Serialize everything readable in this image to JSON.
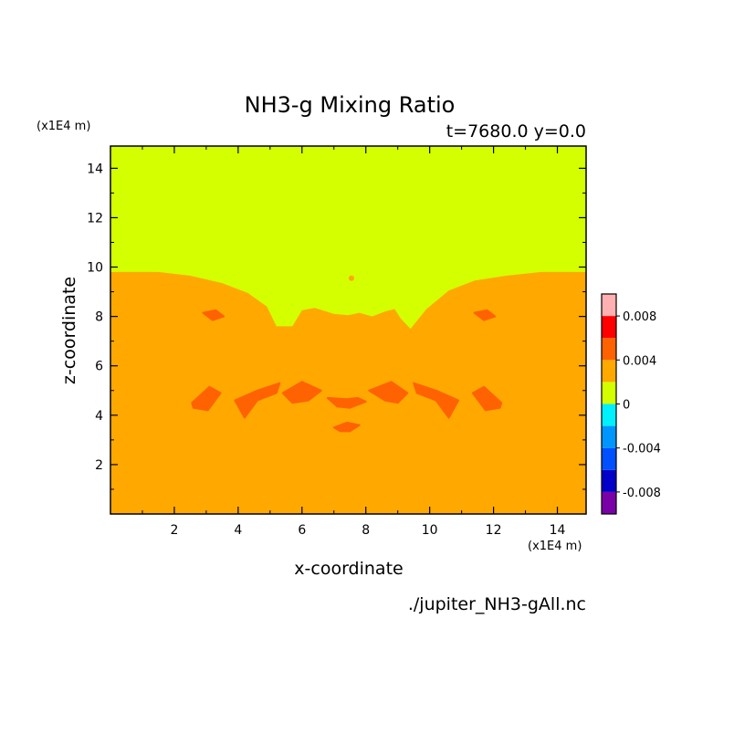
{
  "chart_data": {
    "type": "heatmap",
    "title": "NH3-g Mixing Ratio",
    "subtitle": "t=7680.0 y=0.0",
    "xlabel": "x-coordinate",
    "ylabel": "z-coordinate",
    "x_unit_label": "(x1E4 m)",
    "z_unit_label": "(x1E4 m)",
    "source_file": "./jupiter_NH3-gAll.nc",
    "xlim": [
      0,
      14.9
    ],
    "ylim": [
      0,
      14.9
    ],
    "x_ticks": [
      2,
      4,
      6,
      8,
      10,
      12,
      14
    ],
    "y_ticks": [
      2,
      4,
      6,
      8,
      10,
      12,
      14
    ],
    "grid": false,
    "colorbar": {
      "placement": "right",
      "levels": [
        {
          "from": -0.01,
          "to": -0.008,
          "color": "#7a00a8"
        },
        {
          "from": -0.008,
          "to": -0.006,
          "color": "#0000c8"
        },
        {
          "from": -0.006,
          "to": -0.004,
          "color": "#0050ff"
        },
        {
          "from": -0.004,
          "to": -0.002,
          "color": "#0096ff"
        },
        {
          "from": -0.002,
          "to": 0.0,
          "color": "#00f0ff"
        },
        {
          "from": 0.0,
          "to": 0.002,
          "color": "#d4ff00"
        },
        {
          "from": 0.002,
          "to": 0.004,
          "color": "#ffa800"
        },
        {
          "from": 0.004,
          "to": 0.006,
          "color": "#ff6200"
        },
        {
          "from": 0.006,
          "to": 0.008,
          "color": "#ff0000"
        },
        {
          "from": 0.008,
          "to": 0.01,
          "color": "#ffb0b0"
        }
      ],
      "tick_values": [
        0.008,
        0.004,
        0,
        -0.004,
        -0.008
      ],
      "tick_labels": [
        "0.008",
        "0.004",
        "0",
        "-0.004",
        "-0.008"
      ]
    },
    "regions": {
      "upper": {
        "color": "#d4ff00",
        "range": "0 to 0.002"
      },
      "lower": {
        "color": "#ffa800",
        "range": "0.002 to 0.004"
      },
      "cells": {
        "color": "#ff6200",
        "range": "0.004 to 0.006"
      }
    },
    "boundary": [
      [
        0.0,
        9.8
      ],
      [
        1.5,
        9.8
      ],
      [
        2.5,
        9.65
      ],
      [
        3.5,
        9.35
      ],
      [
        4.3,
        8.95
      ],
      [
        4.9,
        8.4
      ],
      [
        5.2,
        7.6
      ],
      [
        5.7,
        7.6
      ],
      [
        6.0,
        8.25
      ],
      [
        6.4,
        8.35
      ],
      [
        7.0,
        8.1
      ],
      [
        7.45,
        8.05
      ],
      [
        7.8,
        8.15
      ],
      [
        8.2,
        8.0
      ],
      [
        8.6,
        8.2
      ],
      [
        8.9,
        8.3
      ],
      [
        9.1,
        7.9
      ],
      [
        9.4,
        7.5
      ],
      [
        9.9,
        8.3
      ],
      [
        10.6,
        9.05
      ],
      [
        11.4,
        9.45
      ],
      [
        12.4,
        9.65
      ],
      [
        13.5,
        9.8
      ],
      [
        14.9,
        9.8
      ]
    ],
    "cells": [
      [
        [
          2.9,
          8.15
        ],
        [
          3.3,
          8.25
        ],
        [
          3.55,
          8.0
        ],
        [
          3.2,
          7.85
        ]
      ],
      [
        [
          11.4,
          8.15
        ],
        [
          11.8,
          8.25
        ],
        [
          12.05,
          8.0
        ],
        [
          11.7,
          7.85
        ]
      ],
      [
        [
          2.55,
          4.5
        ],
        [
          3.1,
          5.15
        ],
        [
          3.45,
          4.9
        ],
        [
          3.05,
          4.2
        ],
        [
          2.6,
          4.3
        ]
      ],
      [
        [
          12.25,
          4.5
        ],
        [
          11.7,
          5.15
        ],
        [
          11.35,
          4.9
        ],
        [
          11.75,
          4.2
        ],
        [
          12.2,
          4.3
        ]
      ],
      [
        [
          3.9,
          4.6
        ],
        [
          4.6,
          5.0
        ],
        [
          5.3,
          5.3
        ],
        [
          5.2,
          4.9
        ],
        [
          4.6,
          4.6
        ],
        [
          4.2,
          3.9
        ]
      ],
      [
        [
          10.9,
          4.6
        ],
        [
          10.2,
          5.0
        ],
        [
          9.5,
          5.3
        ],
        [
          9.6,
          4.9
        ],
        [
          10.2,
          4.6
        ],
        [
          10.6,
          3.9
        ]
      ],
      [
        [
          5.4,
          4.9
        ],
        [
          6.0,
          5.35
        ],
        [
          6.6,
          5.0
        ],
        [
          6.2,
          4.6
        ],
        [
          5.7,
          4.5
        ]
      ],
      [
        [
          9.3,
          4.9
        ],
        [
          8.8,
          5.35
        ],
        [
          8.1,
          5.0
        ],
        [
          8.6,
          4.6
        ],
        [
          9.0,
          4.5
        ]
      ],
      [
        [
          6.8,
          4.7
        ],
        [
          7.4,
          4.65
        ],
        [
          7.75,
          4.7
        ],
        [
          8.0,
          4.55
        ],
        [
          7.5,
          4.3
        ],
        [
          7.1,
          4.35
        ]
      ],
      [
        [
          7.0,
          3.5
        ],
        [
          7.4,
          3.7
        ],
        [
          7.8,
          3.6
        ],
        [
          7.5,
          3.35
        ],
        [
          7.2,
          3.35
        ]
      ]
    ],
    "small_blob": [
      7.55,
      9.55
    ]
  }
}
